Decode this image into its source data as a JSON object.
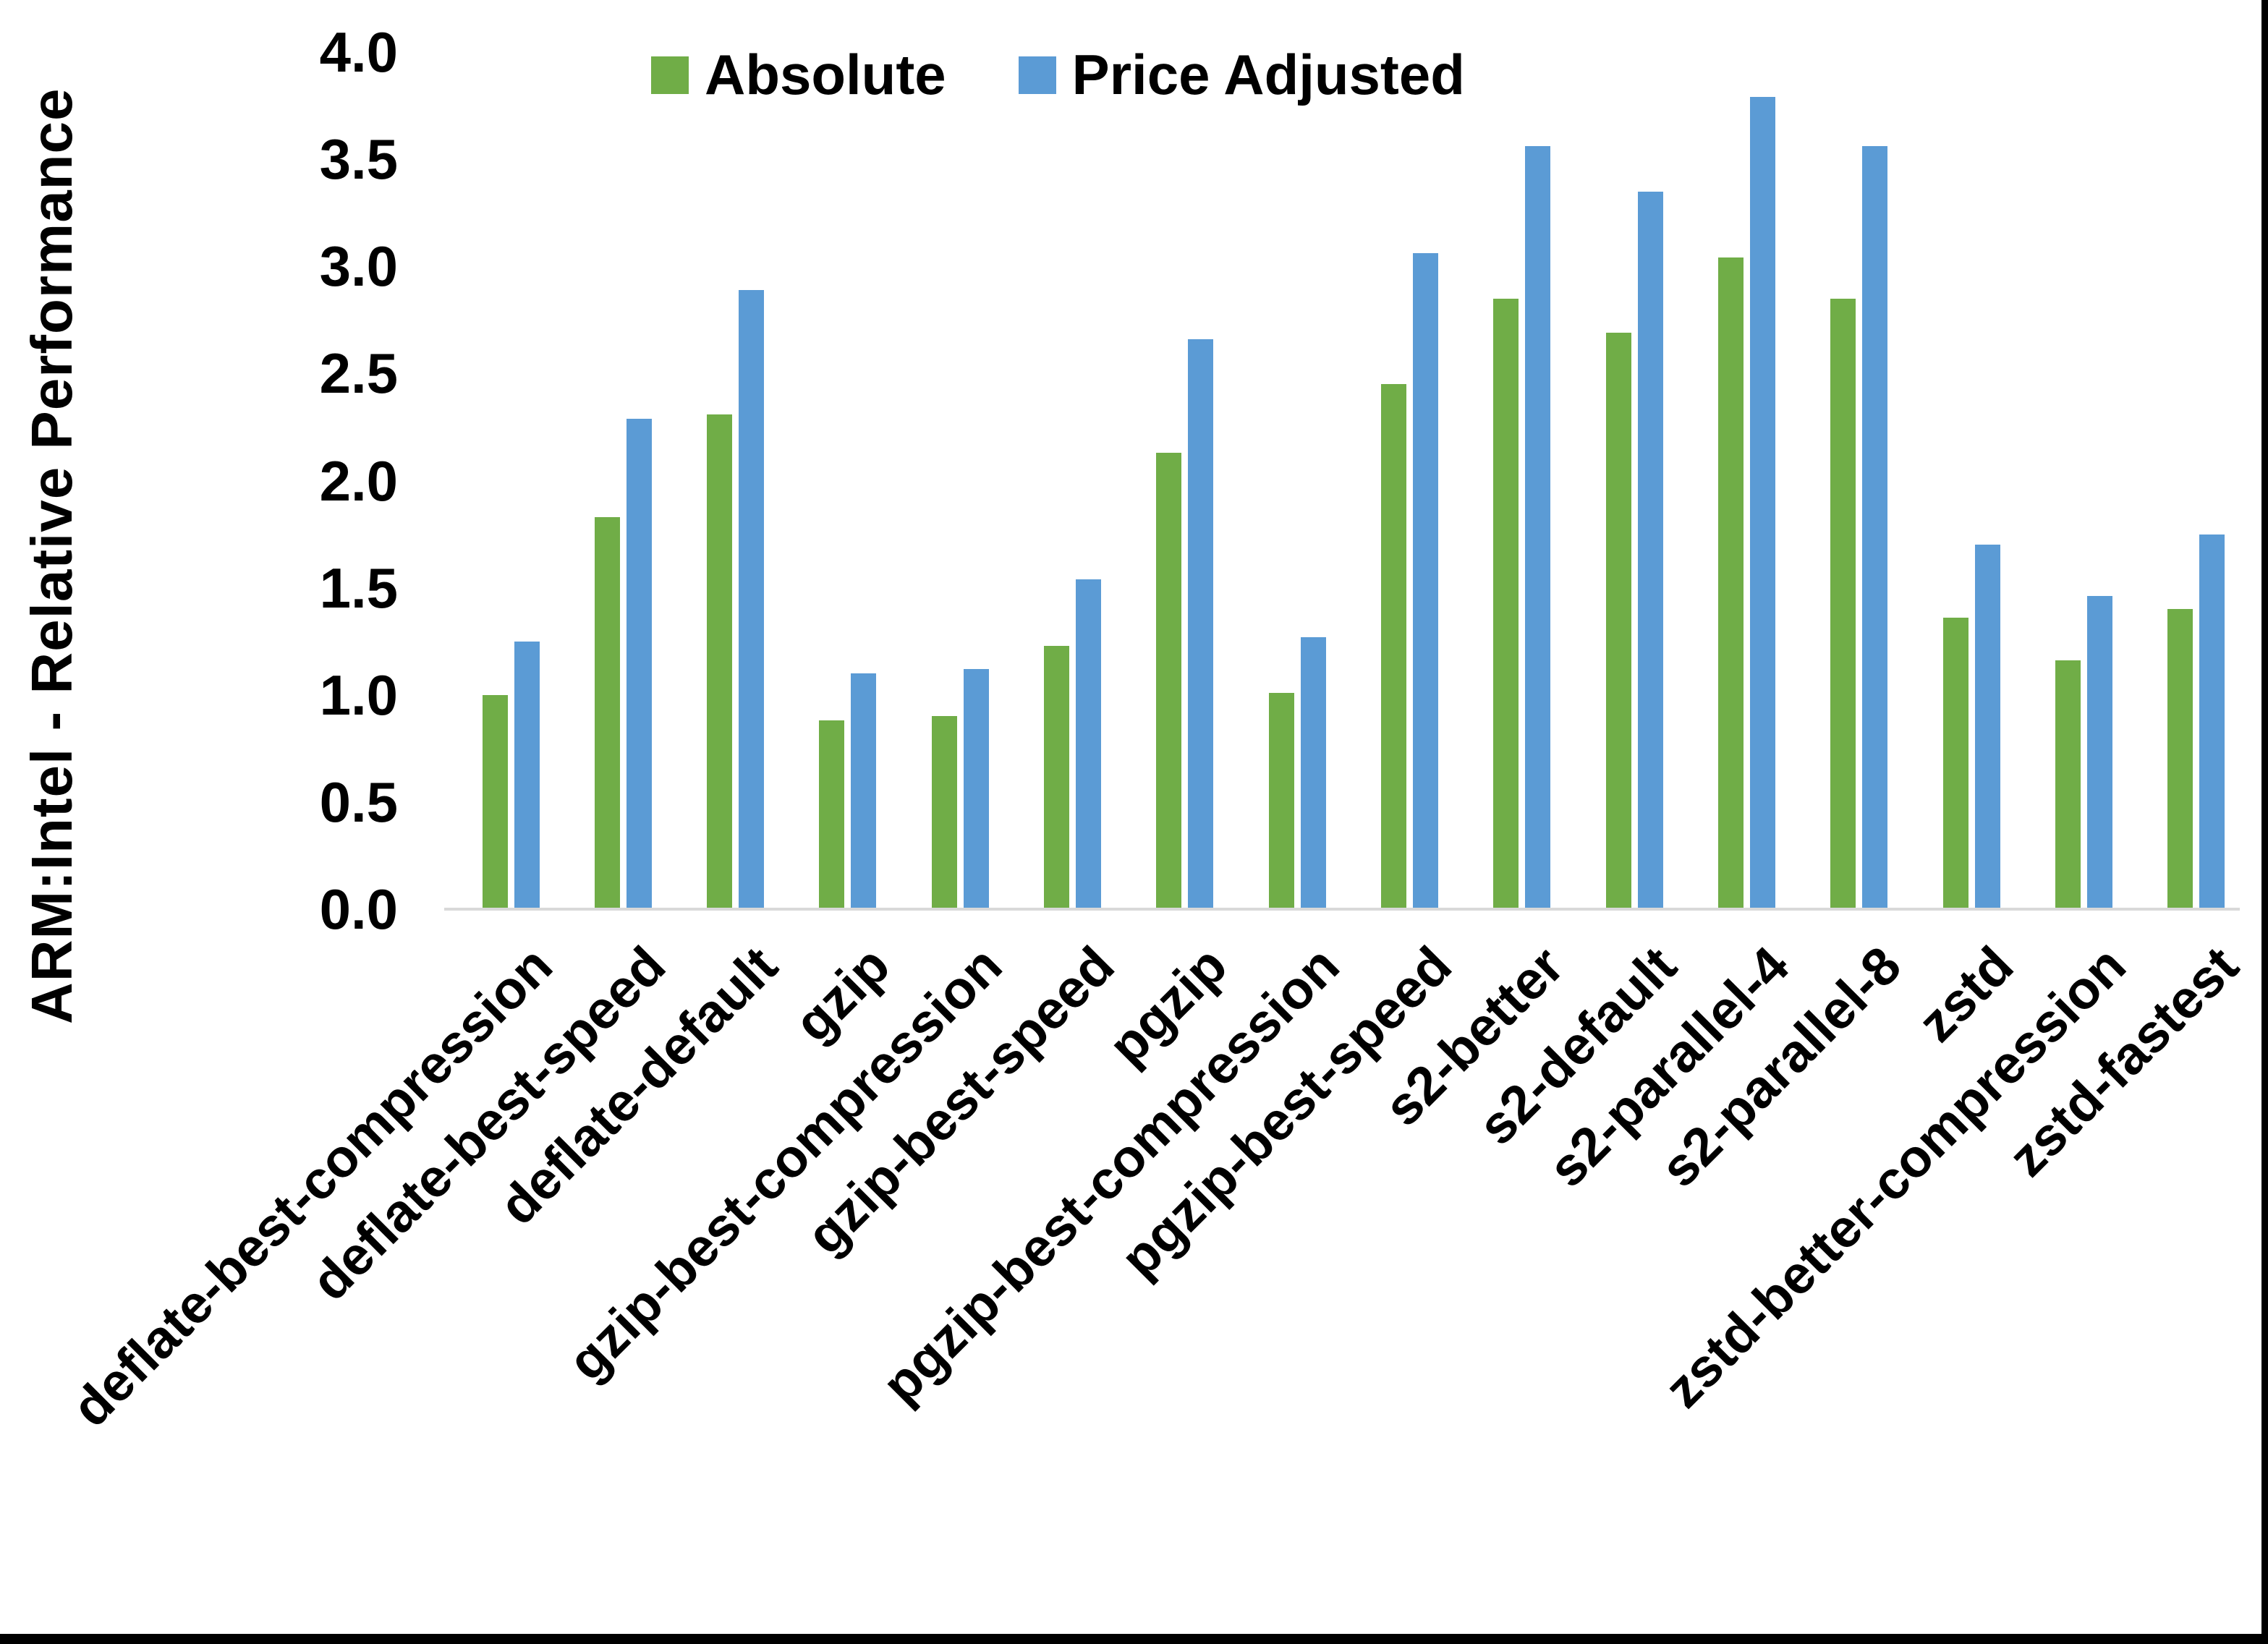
{
  "chart_data": {
    "type": "bar",
    "title": "",
    "xlabel": "",
    "ylabel": "ARM:Intel - Relative Performance",
    "ylim": [
      0.0,
      4.0
    ],
    "ytick_step": 0.5,
    "ytick_labels": [
      "0.0",
      "0.5",
      "1.0",
      "1.5",
      "2.0",
      "2.5",
      "3.0",
      "3.5",
      "4.0"
    ],
    "grid": false,
    "legend_position": "top-center",
    "categories": [
      "deflate-best-compression",
      "deflate-best-speed",
      "deflate-default",
      "gzip",
      "gzip-best-compression",
      "gzip-best-speed",
      "pgzip",
      "pgzip-best-compression",
      "pgzip-best-speed",
      "s2-better",
      "s2-default",
      "s2-parallel-4",
      "s2-parallel-8",
      "zstd",
      "zstd-better-compression",
      "zstd-fastest"
    ],
    "series": [
      {
        "name": "Absolute",
        "color": "#70AD47",
        "values": [
          1.0,
          1.83,
          2.31,
          0.88,
          0.9,
          1.23,
          2.13,
          1.01,
          2.45,
          2.85,
          2.69,
          3.04,
          2.85,
          1.36,
          1.16,
          1.4
        ]
      },
      {
        "name": "Price Adjusted",
        "color": "#5B9BD5",
        "values": [
          1.25,
          2.29,
          2.89,
          1.1,
          1.12,
          1.54,
          2.66,
          1.27,
          3.06,
          3.56,
          3.35,
          3.79,
          3.56,
          1.7,
          1.46,
          1.75
        ]
      }
    ],
    "colors": {
      "axis_line": "#D9D9D9",
      "text": "#000000",
      "background": "#FFFFFF",
      "frame": "#000000"
    }
  }
}
